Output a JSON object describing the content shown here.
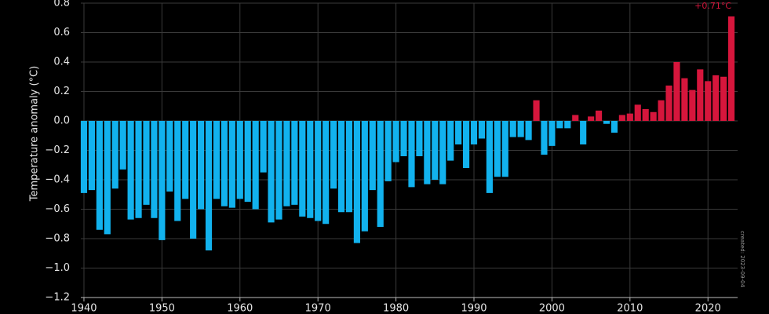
{
  "chart_data": {
    "type": "bar",
    "y_label": "Temperature anomaly (°C)",
    "annotation": "+0.71°C",
    "created_label": "created: 2023-09-04",
    "x": [
      1940,
      1941,
      1942,
      1943,
      1944,
      1945,
      1946,
      1947,
      1948,
      1949,
      1950,
      1951,
      1952,
      1953,
      1954,
      1955,
      1956,
      1957,
      1958,
      1959,
      1960,
      1961,
      1962,
      1963,
      1964,
      1965,
      1966,
      1967,
      1968,
      1969,
      1970,
      1971,
      1972,
      1973,
      1974,
      1975,
      1976,
      1977,
      1978,
      1979,
      1980,
      1981,
      1982,
      1983,
      1984,
      1985,
      1986,
      1987,
      1988,
      1989,
      1990,
      1991,
      1992,
      1993,
      1994,
      1995,
      1996,
      1997,
      1998,
      1999,
      2000,
      2001,
      2002,
      2003,
      2004,
      2005,
      2006,
      2007,
      2008,
      2009,
      2010,
      2011,
      2012,
      2013,
      2014,
      2015,
      2016,
      2017,
      2018,
      2019,
      2020,
      2021,
      2022,
      2023
    ],
    "values": [
      -0.49,
      -0.47,
      -0.74,
      -0.77,
      -0.46,
      -0.33,
      -0.67,
      -0.66,
      -0.57,
      -0.66,
      -0.81,
      -0.48,
      -0.68,
      -0.53,
      -0.8,
      -0.6,
      -0.88,
      -0.53,
      -0.58,
      -0.59,
      -0.53,
      -0.55,
      -0.6,
      -0.35,
      -0.69,
      -0.67,
      -0.58,
      -0.57,
      -0.65,
      -0.66,
      -0.68,
      -0.7,
      -0.46,
      -0.62,
      -0.62,
      -0.83,
      -0.75,
      -0.47,
      -0.72,
      -0.41,
      -0.28,
      -0.24,
      -0.45,
      -0.24,
      -0.43,
      -0.4,
      -0.43,
      -0.27,
      -0.16,
      -0.32,
      -0.16,
      -0.12,
      -0.49,
      -0.38,
      -0.38,
      -0.11,
      -0.11,
      -0.13,
      0.14,
      -0.23,
      -0.17,
      -0.05,
      -0.05,
      0.04,
      -0.16,
      0.03,
      0.07,
      -0.02,
      -0.08,
      0.04,
      0.05,
      0.11,
      0.08,
      0.06,
      0.14,
      0.24,
      0.4,
      0.29,
      0.21,
      0.35,
      0.27,
      0.31,
      0.3,
      0.71
    ],
    "positive_color": "#d6163c",
    "negative_color": "#12b2ee",
    "xlim": [
      1939.6,
      2023.8
    ],
    "ylim": [
      -1.2,
      0.8
    ],
    "xticks": [
      1940,
      1950,
      1960,
      1970,
      1980,
      1990,
      2000,
      2010,
      2020
    ],
    "yticks": [
      0.8,
      0.6,
      0.4,
      0.2,
      {
        "value": 0,
        "label": "0.0"
      },
      {
        "value": -0.2,
        "label": "−0.2"
      },
      {
        "value": -0.4,
        "label": "−0.4"
      },
      {
        "value": -0.6,
        "label": "−0.6"
      },
      {
        "value": -0.8,
        "label": "−0.8"
      },
      {
        "value": -1,
        "label": "−1.0"
      },
      {
        "value": -1.2,
        "label": "−1.2"
      }
    ],
    "grid": true
  }
}
